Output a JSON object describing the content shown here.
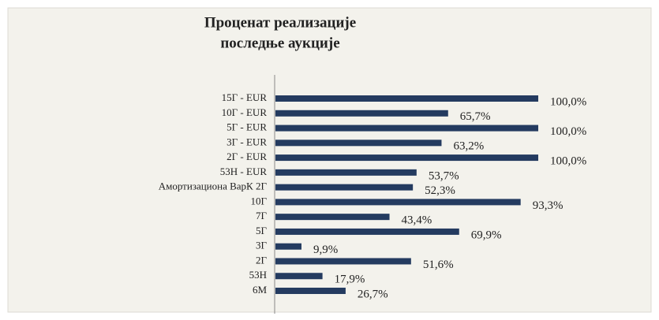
{
  "chart_data": {
    "type": "barh",
    "title": [
      "Проценат реализације",
      "последње аукције"
    ],
    "categories": [
      "15Г - EUR",
      "10Г - EUR",
      "5Г - EUR",
      "3Г - EUR",
      "2Г - EUR",
      "53Н - EUR",
      "Амортизациона ВарК 2Г",
      "10Г",
      "7Г",
      "5Г",
      "3Г",
      "2Г",
      "53Н",
      "6М"
    ],
    "values": [
      100.0,
      65.7,
      100.0,
      63.2,
      100.0,
      53.7,
      52.3,
      93.3,
      43.4,
      69.9,
      9.9,
      51.6,
      17.9,
      26.7
    ],
    "value_labels": [
      "100,0%",
      "65,7%",
      "100,0%",
      "63,2%",
      "100,0%",
      "53,7%",
      "52,3%",
      "93,3%",
      "43,4%",
      "69,9%",
      "9,9%",
      "51,6%",
      "17,9%",
      "26,7%"
    ],
    "color": "#243b60",
    "xlim": [
      0,
      100
    ]
  }
}
